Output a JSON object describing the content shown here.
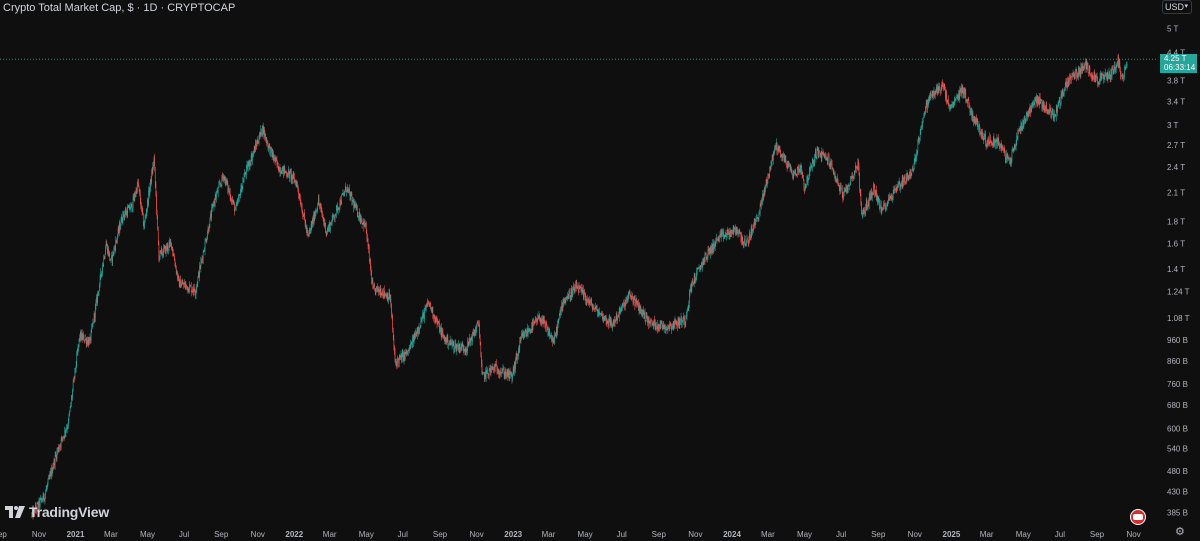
{
  "header": {
    "title": "Crypto Total Market Cap, $ · 1D · CRYPTOCAP",
    "currency": "USD"
  },
  "brand": {
    "name": "TradingView"
  },
  "last_price": {
    "value": "4.25 T",
    "countdown": "06:33:14"
  },
  "colors": {
    "background": "#0f0f0f",
    "up": "#26a69a",
    "down": "#ef5350",
    "text": "#d1d4dc"
  },
  "icons": [
    "tradingview-logo-icon",
    "flag-icon",
    "gear-icon",
    "chevron-down-icon"
  ],
  "chart_data": {
    "type": "candlestick",
    "title": "Crypto Total Market Cap, $ · 1D · CRYPTOCAP",
    "xlabel": "",
    "ylabel": "",
    "yscale": "log",
    "ylim": [
      0.37,
      5.4
    ],
    "y_unit": "T (trillions USD)",
    "y_ticks": [
      {
        "label": "5 T",
        "v": 5.0
      },
      {
        "label": "4.4 T",
        "v": 4.4
      },
      {
        "label": "3.8 T",
        "v": 3.8
      },
      {
        "label": "3.4 T",
        "v": 3.4
      },
      {
        "label": "3 T",
        "v": 3.0
      },
      {
        "label": "2.7 T",
        "v": 2.7
      },
      {
        "label": "2.4 T",
        "v": 2.4
      },
      {
        "label": "2.1 T",
        "v": 2.1
      },
      {
        "label": "1.8 T",
        "v": 1.8
      },
      {
        "label": "1.6 T",
        "v": 1.6
      },
      {
        "label": "1.4 T",
        "v": 1.4
      },
      {
        "label": "1.24 T",
        "v": 1.24
      },
      {
        "label": "1.08 T",
        "v": 1.08
      },
      {
        "label": "960 B",
        "v": 0.96
      },
      {
        "label": "860 B",
        "v": 0.86
      },
      {
        "label": "760 B",
        "v": 0.76
      },
      {
        "label": "680 B",
        "v": 0.68
      },
      {
        "label": "600 B",
        "v": 0.6
      },
      {
        "label": "540 B",
        "v": 0.54
      },
      {
        "label": "480 B",
        "v": 0.48
      },
      {
        "label": "430 B",
        "v": 0.43
      },
      {
        "label": "385 B",
        "v": 0.385
      }
    ],
    "x_ticks": [
      {
        "label": "ep",
        "d": "2020-09-01"
      },
      {
        "label": "Nov",
        "d": "2020-11-01"
      },
      {
        "label": "2021",
        "d": "2021-01-01"
      },
      {
        "label": "Mar",
        "d": "2021-03-01"
      },
      {
        "label": "May",
        "d": "2021-05-01"
      },
      {
        "label": "Jul",
        "d": "2021-07-01"
      },
      {
        "label": "Sep",
        "d": "2021-09-01"
      },
      {
        "label": "Nov",
        "d": "2021-11-01"
      },
      {
        "label": "2022",
        "d": "2022-01-01"
      },
      {
        "label": "Mar",
        "d": "2022-03-01"
      },
      {
        "label": "May",
        "d": "2022-05-01"
      },
      {
        "label": "Jul",
        "d": "2022-07-01"
      },
      {
        "label": "Sep",
        "d": "2022-09-01"
      },
      {
        "label": "Nov",
        "d": "2022-11-01"
      },
      {
        "label": "2023",
        "d": "2023-01-01"
      },
      {
        "label": "Mar",
        "d": "2023-03-01"
      },
      {
        "label": "May",
        "d": "2023-05-01"
      },
      {
        "label": "Jul",
        "d": "2023-07-01"
      },
      {
        "label": "Sep",
        "d": "2023-09-01"
      },
      {
        "label": "Nov",
        "d": "2023-11-01"
      },
      {
        "label": "2024",
        "d": "2024-01-01"
      },
      {
        "label": "Mar",
        "d": "2024-03-01"
      },
      {
        "label": "May",
        "d": "2024-05-01"
      },
      {
        "label": "Jul",
        "d": "2024-07-01"
      },
      {
        "label": "Sep",
        "d": "2024-09-01"
      },
      {
        "label": "Nov",
        "d": "2024-11-01"
      },
      {
        "label": "2025",
        "d": "2025-01-01"
      },
      {
        "label": "Mar",
        "d": "2025-03-01"
      },
      {
        "label": "May",
        "d": "2025-05-01"
      },
      {
        "label": "Jul",
        "d": "2025-07-01"
      },
      {
        "label": "Sep",
        "d": "2025-09-01"
      },
      {
        "label": "Nov",
        "d": "2025-11-01"
      }
    ],
    "last_value": 4.25,
    "series": [
      {
        "name": "",
        "points": [
          [
            "2020-10-20",
            0.38
          ],
          [
            "2020-11-10",
            0.42
          ],
          [
            "2020-12-01",
            0.53
          ],
          [
            "2020-12-20",
            0.62
          ],
          [
            "2021-01-08",
            0.98
          ],
          [
            "2021-01-25",
            0.95
          ],
          [
            "2021-02-21",
            1.6
          ],
          [
            "2021-03-01",
            1.45
          ],
          [
            "2021-03-20",
            1.85
          ],
          [
            "2021-04-05",
            1.95
          ],
          [
            "2021-04-15",
            2.2
          ],
          [
            "2021-04-25",
            1.75
          ],
          [
            "2021-05-12",
            2.5
          ],
          [
            "2021-05-20",
            1.5
          ],
          [
            "2021-06-10",
            1.6
          ],
          [
            "2021-06-22",
            1.3
          ],
          [
            "2021-07-20",
            1.25
          ],
          [
            "2021-08-05",
            1.6
          ],
          [
            "2021-08-20",
            2.0
          ],
          [
            "2021-09-05",
            2.3
          ],
          [
            "2021-09-25",
            1.9
          ],
          [
            "2021-10-10",
            2.3
          ],
          [
            "2021-10-25",
            2.6
          ],
          [
            "2021-11-09",
            2.95
          ],
          [
            "2021-11-20",
            2.65
          ],
          [
            "2021-12-05",
            2.4
          ],
          [
            "2021-12-25",
            2.3
          ],
          [
            "2022-01-05",
            2.2
          ],
          [
            "2022-01-24",
            1.65
          ],
          [
            "2022-02-10",
            2.0
          ],
          [
            "2022-02-24",
            1.7
          ],
          [
            "2022-03-29",
            2.15
          ],
          [
            "2022-04-15",
            1.9
          ],
          [
            "2022-04-30",
            1.75
          ],
          [
            "2022-05-12",
            1.25
          ],
          [
            "2022-05-25",
            1.25
          ],
          [
            "2022-06-10",
            1.2
          ],
          [
            "2022-06-18",
            0.85
          ],
          [
            "2022-07-10",
            0.9
          ],
          [
            "2022-08-13",
            1.17
          ],
          [
            "2022-09-07",
            0.97
          ],
          [
            "2022-09-25",
            0.93
          ],
          [
            "2022-10-15",
            0.92
          ],
          [
            "2022-11-05",
            1.05
          ],
          [
            "2022-11-10",
            0.79
          ],
          [
            "2022-12-01",
            0.83
          ],
          [
            "2022-12-30",
            0.79
          ],
          [
            "2023-01-15",
            0.97
          ],
          [
            "2023-02-15",
            1.08
          ],
          [
            "2023-03-10",
            0.95
          ],
          [
            "2023-03-25",
            1.18
          ],
          [
            "2023-04-18",
            1.27
          ],
          [
            "2023-05-15",
            1.14
          ],
          [
            "2023-06-15",
            1.04
          ],
          [
            "2023-07-15",
            1.22
          ],
          [
            "2023-08-17",
            1.05
          ],
          [
            "2023-09-15",
            1.03
          ],
          [
            "2023-10-15",
            1.07
          ],
          [
            "2023-10-25",
            1.28
          ],
          [
            "2023-11-15",
            1.47
          ],
          [
            "2023-12-10",
            1.65
          ],
          [
            "2024-01-10",
            1.72
          ],
          [
            "2024-01-24",
            1.58
          ],
          [
            "2024-02-15",
            1.88
          ],
          [
            "2024-03-14",
            2.7
          ],
          [
            "2024-04-13",
            2.3
          ],
          [
            "2024-04-25",
            2.4
          ],
          [
            "2024-05-01",
            2.15
          ],
          [
            "2024-05-21",
            2.6
          ],
          [
            "2024-06-10",
            2.5
          ],
          [
            "2024-07-05",
            2.05
          ],
          [
            "2024-07-29",
            2.45
          ],
          [
            "2024-08-05",
            1.85
          ],
          [
            "2024-08-25",
            2.15
          ],
          [
            "2024-09-06",
            1.9
          ],
          [
            "2024-10-01",
            2.15
          ],
          [
            "2024-10-29",
            2.35
          ],
          [
            "2024-11-12",
            3.0
          ],
          [
            "2024-11-24",
            3.45
          ],
          [
            "2024-12-17",
            3.7
          ],
          [
            "2024-12-30",
            3.25
          ],
          [
            "2025-01-20",
            3.65
          ],
          [
            "2025-02-03",
            3.2
          ],
          [
            "2025-02-28",
            2.75
          ],
          [
            "2025-03-20",
            2.75
          ],
          [
            "2025-04-08",
            2.45
          ],
          [
            "2025-04-25",
            2.95
          ],
          [
            "2025-05-22",
            3.45
          ],
          [
            "2025-06-22",
            3.15
          ],
          [
            "2025-07-14",
            3.8
          ],
          [
            "2025-08-14",
            4.1
          ],
          [
            "2025-09-01",
            3.8
          ],
          [
            "2025-09-22",
            3.9
          ],
          [
            "2025-10-06",
            4.2
          ],
          [
            "2025-10-14",
            3.8
          ],
          [
            "2025-10-21",
            4.25
          ]
        ]
      }
    ]
  }
}
